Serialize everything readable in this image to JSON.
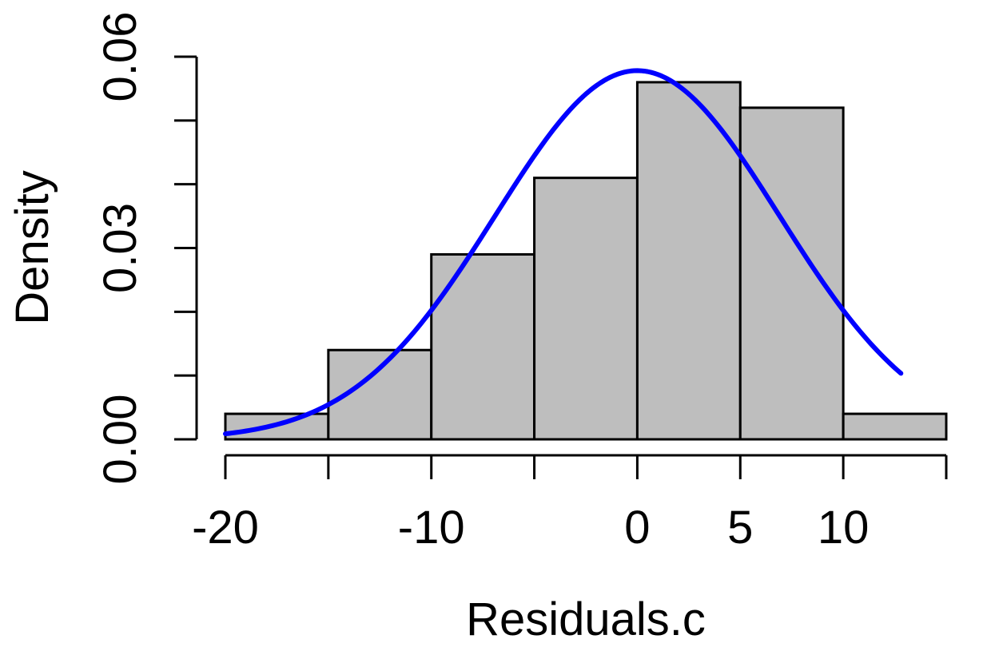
{
  "chart_data": {
    "type": "bar",
    "subtype": "histogram with density curve",
    "xlabel": "Residuals.c",
    "ylabel": "Density",
    "xlim": [
      -20,
      15
    ],
    "ylim": [
      0,
      0.06
    ],
    "x_ticks": [
      -20,
      -15,
      -10,
      -5,
      0,
      5,
      10,
      15
    ],
    "x_tick_labels": [
      "-20",
      "",
      "-10",
      "",
      "0",
      "5",
      "10",
      ""
    ],
    "y_ticks": [
      0,
      0.01,
      0.02,
      0.03,
      0.04,
      0.05,
      0.06
    ],
    "y_tick_labels": [
      "0.00",
      "",
      "",
      "0.03",
      "",
      "",
      "0.06"
    ],
    "bins": [
      {
        "x0": -20,
        "x1": -15,
        "density": 0.004
      },
      {
        "x0": -15,
        "x1": -10,
        "density": 0.014
      },
      {
        "x0": -10,
        "x1": -5,
        "density": 0.029
      },
      {
        "x0": -5,
        "x1": 0,
        "density": 0.041
      },
      {
        "x0": 0,
        "x1": 5,
        "density": 0.056
      },
      {
        "x0": 5,
        "x1": 10,
        "density": 0.052
      },
      {
        "x0": 10,
        "x1": 15,
        "density": 0.004
      }
    ],
    "curve": {
      "kind": "normal density",
      "mean": 0,
      "sd": 6.9,
      "x_range": [
        -20,
        12.8
      ]
    },
    "grid": false,
    "bar_fill": "#bebebe",
    "bar_stroke": "#000000",
    "curve_color": "#0000ff"
  }
}
